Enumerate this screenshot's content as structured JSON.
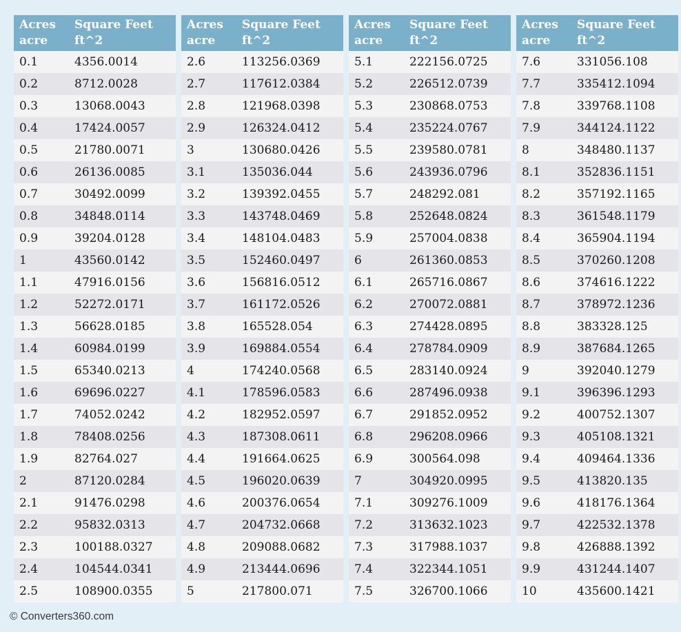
{
  "page": {
    "background_color": "#e2eff6",
    "header_bg_color": "#7ab0c9",
    "row_light_color": "#f3f3f3",
    "row_dark_color": "#e4e4e9"
  },
  "headers": {
    "acres_label": "Acres",
    "acres_unit": "acre",
    "sqft_label": "Square Feet",
    "sqft_unit": "ft^2"
  },
  "footer": {
    "credit": "© Converters360.com"
  },
  "tables": [
    {
      "rows": [
        {
          "acres": "0.1",
          "sqft": "4356.0014"
        },
        {
          "acres": "0.2",
          "sqft": "8712.0028"
        },
        {
          "acres": "0.3",
          "sqft": "13068.0043"
        },
        {
          "acres": "0.4",
          "sqft": "17424.0057"
        },
        {
          "acres": "0.5",
          "sqft": "21780.0071"
        },
        {
          "acres": "0.6",
          "sqft": "26136.0085"
        },
        {
          "acres": "0.7",
          "sqft": "30492.0099"
        },
        {
          "acres": "0.8",
          "sqft": "34848.0114"
        },
        {
          "acres": "0.9",
          "sqft": "39204.0128"
        },
        {
          "acres": "1",
          "sqft": "43560.0142"
        },
        {
          "acres": "1.1",
          "sqft": "47916.0156"
        },
        {
          "acres": "1.2",
          "sqft": "52272.0171"
        },
        {
          "acres": "1.3",
          "sqft": "56628.0185"
        },
        {
          "acres": "1.4",
          "sqft": "60984.0199"
        },
        {
          "acres": "1.5",
          "sqft": "65340.0213"
        },
        {
          "acres": "1.6",
          "sqft": "69696.0227"
        },
        {
          "acres": "1.7",
          "sqft": "74052.0242"
        },
        {
          "acres": "1.8",
          "sqft": "78408.0256"
        },
        {
          "acres": "1.9",
          "sqft": "82764.027"
        },
        {
          "acres": "2",
          "sqft": "87120.0284"
        },
        {
          "acres": "2.1",
          "sqft": "91476.0298"
        },
        {
          "acres": "2.2",
          "sqft": "95832.0313"
        },
        {
          "acres": "2.3",
          "sqft": "100188.0327"
        },
        {
          "acres": "2.4",
          "sqft": "104544.0341"
        },
        {
          "acres": "2.5",
          "sqft": "108900.0355"
        }
      ]
    },
    {
      "rows": [
        {
          "acres": "2.6",
          "sqft": "113256.0369"
        },
        {
          "acres": "2.7",
          "sqft": "117612.0384"
        },
        {
          "acres": "2.8",
          "sqft": "121968.0398"
        },
        {
          "acres": "2.9",
          "sqft": "126324.0412"
        },
        {
          "acres": "3",
          "sqft": "130680.0426"
        },
        {
          "acres": "3.1",
          "sqft": "135036.044"
        },
        {
          "acres": "3.2",
          "sqft": "139392.0455"
        },
        {
          "acres": "3.3",
          "sqft": "143748.0469"
        },
        {
          "acres": "3.4",
          "sqft": "148104.0483"
        },
        {
          "acres": "3.5",
          "sqft": "152460.0497"
        },
        {
          "acres": "3.6",
          "sqft": "156816.0512"
        },
        {
          "acres": "3.7",
          "sqft": "161172.0526"
        },
        {
          "acres": "3.8",
          "sqft": "165528.054"
        },
        {
          "acres": "3.9",
          "sqft": "169884.0554"
        },
        {
          "acres": "4",
          "sqft": "174240.0568"
        },
        {
          "acres": "4.1",
          "sqft": "178596.0583"
        },
        {
          "acres": "4.2",
          "sqft": "182952.0597"
        },
        {
          "acres": "4.3",
          "sqft": "187308.0611"
        },
        {
          "acres": "4.4",
          "sqft": "191664.0625"
        },
        {
          "acres": "4.5",
          "sqft": "196020.0639"
        },
        {
          "acres": "4.6",
          "sqft": "200376.0654"
        },
        {
          "acres": "4.7",
          "sqft": "204732.0668"
        },
        {
          "acres": "4.8",
          "sqft": "209088.0682"
        },
        {
          "acres": "4.9",
          "sqft": "213444.0696"
        },
        {
          "acres": "5",
          "sqft": "217800.071"
        }
      ]
    },
    {
      "rows": [
        {
          "acres": "5.1",
          "sqft": "222156.0725"
        },
        {
          "acres": "5.2",
          "sqft": "226512.0739"
        },
        {
          "acres": "5.3",
          "sqft": "230868.0753"
        },
        {
          "acres": "5.4",
          "sqft": "235224.0767"
        },
        {
          "acres": "5.5",
          "sqft": "239580.0781"
        },
        {
          "acres": "5.6",
          "sqft": "243936.0796"
        },
        {
          "acres": "5.7",
          "sqft": "248292.081"
        },
        {
          "acres": "5.8",
          "sqft": "252648.0824"
        },
        {
          "acres": "5.9",
          "sqft": "257004.0838"
        },
        {
          "acres": "6",
          "sqft": "261360.0853"
        },
        {
          "acres": "6.1",
          "sqft": "265716.0867"
        },
        {
          "acres": "6.2",
          "sqft": "270072.0881"
        },
        {
          "acres": "6.3",
          "sqft": "274428.0895"
        },
        {
          "acres": "6.4",
          "sqft": "278784.0909"
        },
        {
          "acres": "6.5",
          "sqft": "283140.0924"
        },
        {
          "acres": "6.6",
          "sqft": "287496.0938"
        },
        {
          "acres": "6.7",
          "sqft": "291852.0952"
        },
        {
          "acres": "6.8",
          "sqft": "296208.0966"
        },
        {
          "acres": "6.9",
          "sqft": "300564.098"
        },
        {
          "acres": "7",
          "sqft": "304920.0995"
        },
        {
          "acres": "7.1",
          "sqft": "309276.1009"
        },
        {
          "acres": "7.2",
          "sqft": "313632.1023"
        },
        {
          "acres": "7.3",
          "sqft": "317988.1037"
        },
        {
          "acres": "7.4",
          "sqft": "322344.1051"
        },
        {
          "acres": "7.5",
          "sqft": "326700.1066"
        }
      ]
    },
    {
      "rows": [
        {
          "acres": "7.6",
          "sqft": "331056.108"
        },
        {
          "acres": "7.7",
          "sqft": "335412.1094"
        },
        {
          "acres": "7.8",
          "sqft": "339768.1108"
        },
        {
          "acres": "7.9",
          "sqft": "344124.1122"
        },
        {
          "acres": "8",
          "sqft": "348480.1137"
        },
        {
          "acres": "8.1",
          "sqft": "352836.1151"
        },
        {
          "acres": "8.2",
          "sqft": "357192.1165"
        },
        {
          "acres": "8.3",
          "sqft": "361548.1179"
        },
        {
          "acres": "8.4",
          "sqft": "365904.1194"
        },
        {
          "acres": "8.5",
          "sqft": "370260.1208"
        },
        {
          "acres": "8.6",
          "sqft": "374616.1222"
        },
        {
          "acres": "8.7",
          "sqft": "378972.1236"
        },
        {
          "acres": "8.8",
          "sqft": "383328.125"
        },
        {
          "acres": "8.9",
          "sqft": "387684.1265"
        },
        {
          "acres": "9",
          "sqft": "392040.1279"
        },
        {
          "acres": "9.1",
          "sqft": "396396.1293"
        },
        {
          "acres": "9.2",
          "sqft": "400752.1307"
        },
        {
          "acres": "9.3",
          "sqft": "405108.1321"
        },
        {
          "acres": "9.4",
          "sqft": "409464.1336"
        },
        {
          "acres": "9.5",
          "sqft": "413820.135"
        },
        {
          "acres": "9.6",
          "sqft": "418176.1364"
        },
        {
          "acres": "9.7",
          "sqft": "422532.1378"
        },
        {
          "acres": "9.8",
          "sqft": "426888.1392"
        },
        {
          "acres": "9.9",
          "sqft": "431244.1407"
        },
        {
          "acres": "10",
          "sqft": "435600.1421"
        }
      ]
    }
  ]
}
